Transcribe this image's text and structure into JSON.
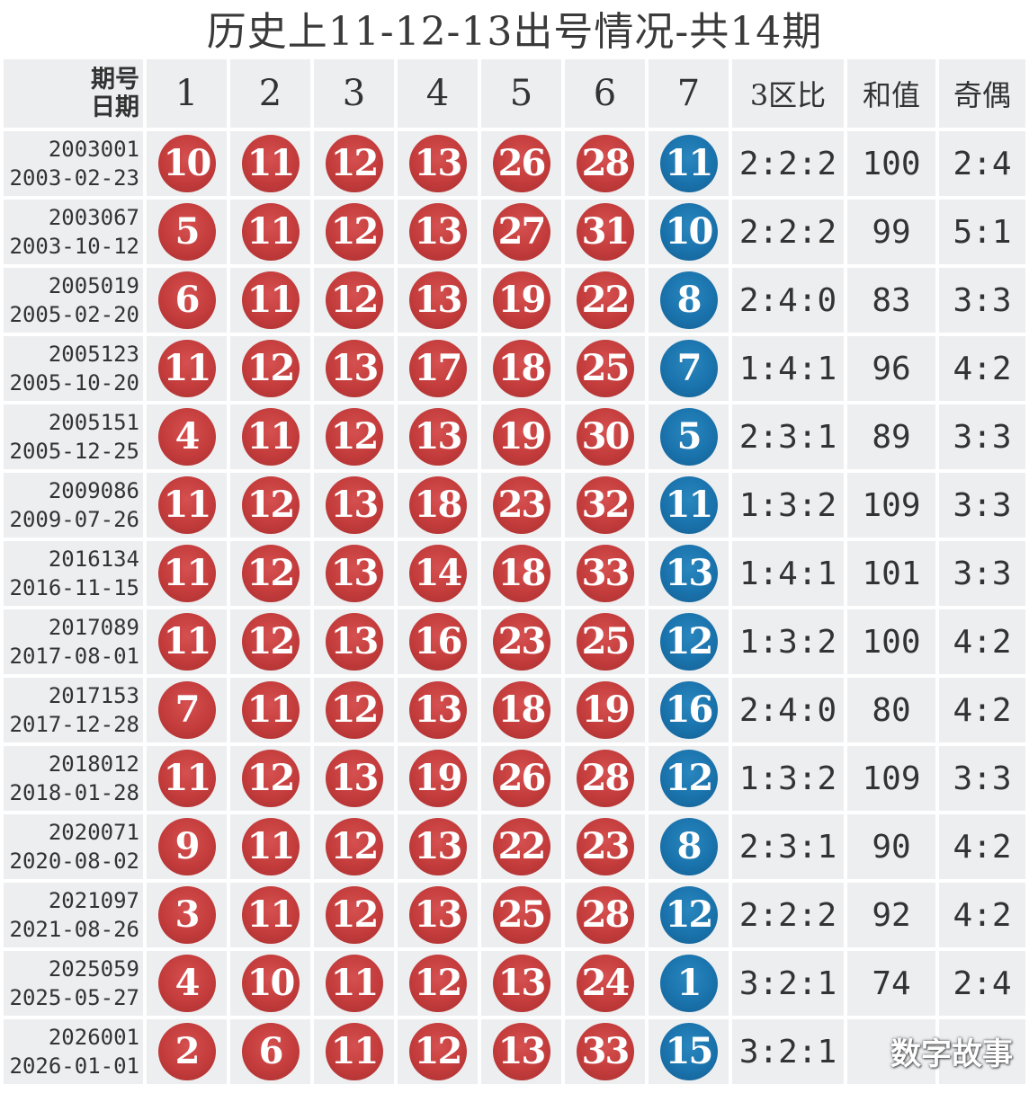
{
  "title": "历史上11-12-13出号情况-共14期",
  "header": {
    "period_label_line1": "期号",
    "period_label_line2": "日期",
    "positions": [
      "1",
      "2",
      "3",
      "4",
      "5",
      "6",
      "7"
    ],
    "zone_ratio": "3区比",
    "sum": "和值",
    "odd_even": "奇偶"
  },
  "colors": {
    "red_ball": "#c43c3c",
    "blue_ball": "#1a73ac",
    "cell_bg": "#eceef0"
  },
  "rows": [
    {
      "period": "2003001",
      "date": "2003-02-23",
      "balls": [
        "10",
        "11",
        "12",
        "13",
        "26",
        "28"
      ],
      "blue": "11",
      "zone": "2:2:2",
      "sum": "100",
      "oe": "2:4"
    },
    {
      "period": "2003067",
      "date": "2003-10-12",
      "balls": [
        "5",
        "11",
        "12",
        "13",
        "27",
        "31"
      ],
      "blue": "10",
      "zone": "2:2:2",
      "sum": "99",
      "oe": "5:1"
    },
    {
      "period": "2005019",
      "date": "2005-02-20",
      "balls": [
        "6",
        "11",
        "12",
        "13",
        "19",
        "22"
      ],
      "blue": "8",
      "zone": "2:4:0",
      "sum": "83",
      "oe": "3:3"
    },
    {
      "period": "2005123",
      "date": "2005-10-20",
      "balls": [
        "11",
        "12",
        "13",
        "17",
        "18",
        "25"
      ],
      "blue": "7",
      "zone": "1:4:1",
      "sum": "96",
      "oe": "4:2"
    },
    {
      "period": "2005151",
      "date": "2005-12-25",
      "balls": [
        "4",
        "11",
        "12",
        "13",
        "19",
        "30"
      ],
      "blue": "5",
      "zone": "2:3:1",
      "sum": "89",
      "oe": "3:3"
    },
    {
      "period": "2009086",
      "date": "2009-07-26",
      "balls": [
        "11",
        "12",
        "13",
        "18",
        "23",
        "32"
      ],
      "blue": "11",
      "zone": "1:3:2",
      "sum": "109",
      "oe": "3:3"
    },
    {
      "period": "2016134",
      "date": "2016-11-15",
      "balls": [
        "11",
        "12",
        "13",
        "14",
        "18",
        "33"
      ],
      "blue": "13",
      "zone": "1:4:1",
      "sum": "101",
      "oe": "3:3"
    },
    {
      "period": "2017089",
      "date": "2017-08-01",
      "balls": [
        "11",
        "12",
        "13",
        "16",
        "23",
        "25"
      ],
      "blue": "12",
      "zone": "1:3:2",
      "sum": "100",
      "oe": "4:2"
    },
    {
      "period": "2017153",
      "date": "2017-12-28",
      "balls": [
        "7",
        "11",
        "12",
        "13",
        "18",
        "19"
      ],
      "blue": "16",
      "zone": "2:4:0",
      "sum": "80",
      "oe": "4:2"
    },
    {
      "period": "2018012",
      "date": "2018-01-28",
      "balls": [
        "11",
        "12",
        "13",
        "19",
        "26",
        "28"
      ],
      "blue": "12",
      "zone": "1:3:2",
      "sum": "109",
      "oe": "3:3"
    },
    {
      "period": "2020071",
      "date": "2020-08-02",
      "balls": [
        "9",
        "11",
        "12",
        "13",
        "22",
        "23"
      ],
      "blue": "8",
      "zone": "2:3:1",
      "sum": "90",
      "oe": "4:2"
    },
    {
      "period": "2021097",
      "date": "2021-08-26",
      "balls": [
        "3",
        "11",
        "12",
        "13",
        "25",
        "28"
      ],
      "blue": "12",
      "zone": "2:2:2",
      "sum": "92",
      "oe": "4:2"
    },
    {
      "period": "2025059",
      "date": "2025-05-27",
      "balls": [
        "4",
        "10",
        "11",
        "12",
        "13",
        "24"
      ],
      "blue": "1",
      "zone": "3:2:1",
      "sum": "74",
      "oe": "2:4"
    },
    {
      "period": "2026001",
      "date": "2026-01-01",
      "balls": [
        "2",
        "6",
        "11",
        "12",
        "13",
        "33"
      ],
      "blue": "15",
      "zone": "3:2:1",
      "sum": "",
      "oe": ""
    }
  ],
  "watermark": "数字故事"
}
